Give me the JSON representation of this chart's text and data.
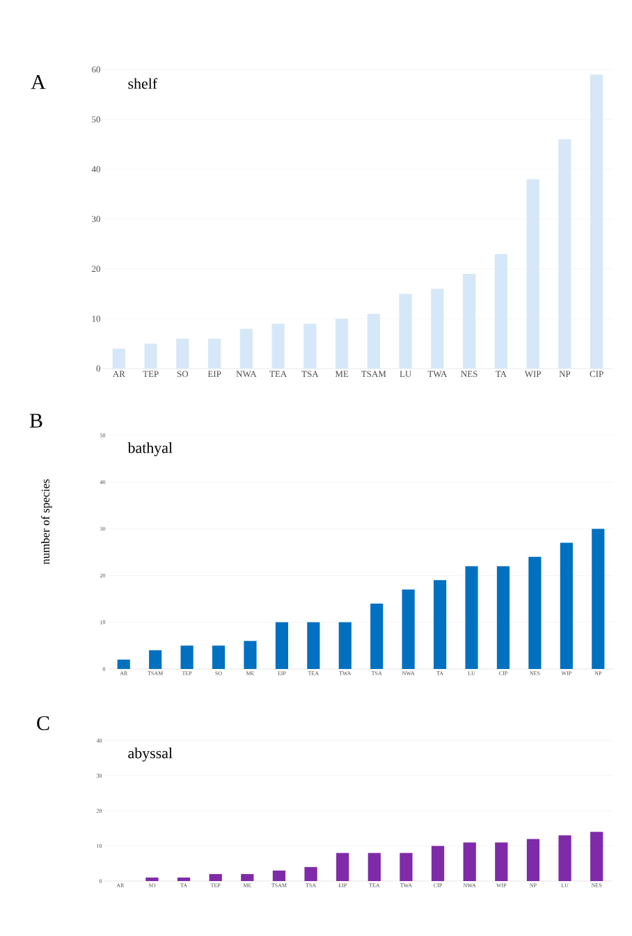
{
  "chart_data": [
    {
      "type": "bar",
      "title": "shelf",
      "annotations": [
        "A"
      ],
      "categories": [
        "AR",
        "TEP",
        "SO",
        "EIP",
        "NWA",
        "TEA",
        "TSA",
        "ME",
        "TSAM",
        "LU",
        "TWA",
        "NES",
        "TA",
        "WIP",
        "NP",
        "CIP"
      ],
      "values": [
        4,
        5,
        6,
        6,
        8,
        9,
        9,
        10,
        11,
        15,
        16,
        19,
        23,
        38,
        46,
        59
      ],
      "color": "#d6e8f7",
      "ylim": [
        0,
        60
      ],
      "yticks": [
        0,
        10,
        20,
        30,
        40,
        50,
        60
      ],
      "grid": "y"
    },
    {
      "type": "bar",
      "title": "bathyal",
      "annotations": [
        "B"
      ],
      "ylabel": "number of species",
      "categories": [
        "AR",
        "TSAM",
        "TEP",
        "SO",
        "ME",
        "EIP",
        "TEA",
        "TWA",
        "TSA",
        "NWA",
        "TA",
        "LU",
        "CIP",
        "NES",
        "WIP",
        "NP"
      ],
      "values": [
        2,
        4,
        5,
        5,
        6,
        10,
        10,
        10,
        14,
        17,
        19,
        22,
        22,
        24,
        27,
        30
      ],
      "color": "#0070c0",
      "ylim": [
        0,
        50
      ],
      "yticks": [
        0,
        10,
        20,
        30,
        40,
        50
      ],
      "grid": "y"
    },
    {
      "type": "bar",
      "title": "abyssal",
      "annotations": [
        "C"
      ],
      "categories": [
        "AR",
        "SO",
        "TA",
        "TEP",
        "ME",
        "TSAM",
        "TSA",
        "EIP",
        "TEA",
        "TWA",
        "CIP",
        "NWA",
        "WIP",
        "NP",
        "LU",
        "NES"
      ],
      "values": [
        0,
        1,
        1,
        2,
        2,
        3,
        4,
        8,
        8,
        8,
        10,
        11,
        11,
        12,
        13,
        14
      ],
      "color": "#7f2aa8",
      "ylim": [
        0,
        40
      ],
      "yticks": [
        0,
        10,
        20,
        30,
        40
      ],
      "grid": "y"
    }
  ]
}
